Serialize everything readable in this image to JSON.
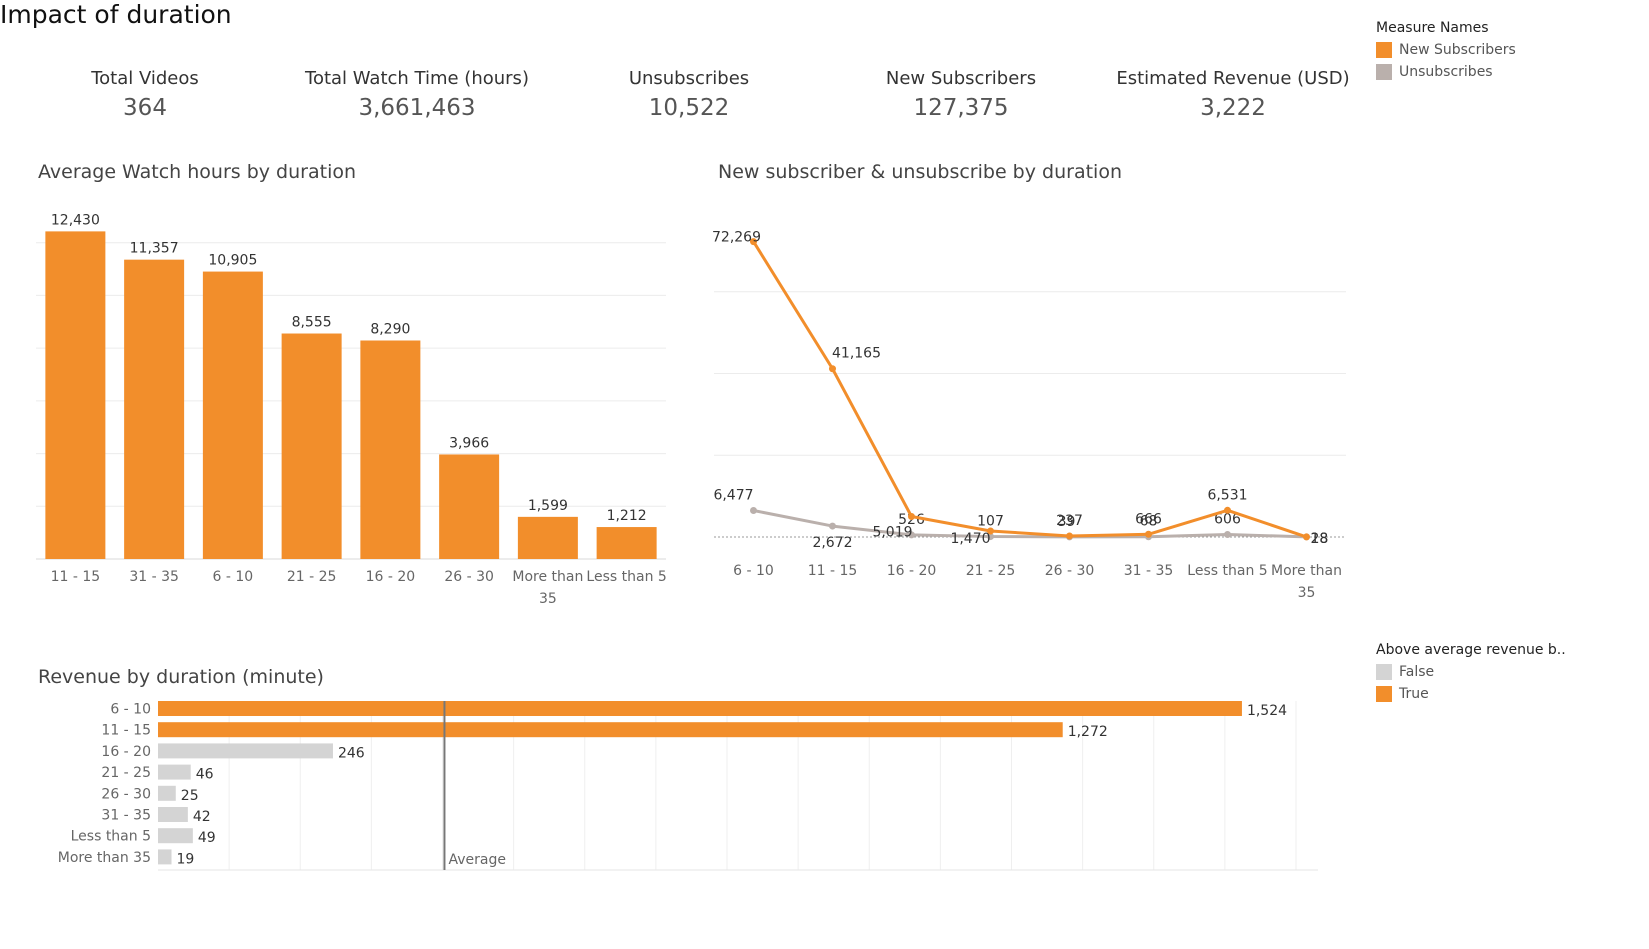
{
  "page_title": "Impact of duration",
  "kpis": [
    {
      "label": "Total Videos",
      "value": "364"
    },
    {
      "label": "Total Watch Time (hours)",
      "value": "3,661,463"
    },
    {
      "label": "Unsubscribes",
      "value": "10,522"
    },
    {
      "label": "New Subscribers",
      "value": "127,375"
    },
    {
      "label": "Estimated Revenue (USD)",
      "value": "3,222"
    }
  ],
  "legend_measure": {
    "title": "Measure Names",
    "items": [
      {
        "label": "New Subscribers",
        "color": "#f28e2b"
      },
      {
        "label": "Unsubscribes",
        "color": "#bab0ac"
      }
    ]
  },
  "legend_revenue": {
    "title": "Above average revenue b..",
    "items": [
      {
        "label": "False",
        "color": "#d4d4d4"
      },
      {
        "label": "True",
        "color": "#f28e2b"
      }
    ]
  },
  "chart_data": [
    {
      "type": "bar",
      "title": "Average Watch hours by duration",
      "categories": [
        "11 - 15",
        "31 - 35",
        "6 - 10",
        "21 - 25",
        "16 - 20",
        "26 - 30",
        "More than 35",
        "Less than 5"
      ],
      "values": [
        12430,
        11357,
        10905,
        8555,
        8290,
        3966,
        1599,
        1212
      ],
      "labels": [
        "12,430",
        "11,357",
        "10,905",
        "8,555",
        "8,290",
        "3,966",
        "1,599",
        "1,212"
      ],
      "ylim": [
        0,
        14000
      ],
      "grid": true,
      "color": "#f28e2b"
    },
    {
      "type": "line",
      "title": "New subscriber & unsubscribe by duration",
      "categories": [
        "6 - 10",
        "11 - 15",
        "16 - 20",
        "21 - 25",
        "26 - 30",
        "31 - 35",
        "Less than 5",
        "More than 35"
      ],
      "series": [
        {
          "name": "New Subscribers",
          "color": "#f28e2b",
          "values": [
            72269,
            41165,
            5019,
            1470,
            237,
            666,
            6531,
            18
          ],
          "labels": [
            "72,269",
            "41,165",
            "5,019",
            "1,470",
            "237",
            "666",
            "6,531",
            "18"
          ]
        },
        {
          "name": "Unsubscribes",
          "color": "#bab0ac",
          "values": [
            6477,
            2672,
            526,
            107,
            39,
            68,
            606,
            28
          ],
          "labels": [
            "6,477",
            "2,672",
            "526",
            "107",
            "39",
            "68",
            "606",
            "28"
          ]
        }
      ],
      "ylim": [
        0,
        80000
      ],
      "grid": true
    },
    {
      "type": "bar",
      "orientation": "horizontal",
      "title": "Revenue by duration (minute)",
      "categories": [
        "6 - 10",
        "11 - 15",
        "16 - 20",
        "21 - 25",
        "26 - 30",
        "31 - 35",
        "Less than 5",
        "More than 35"
      ],
      "values": [
        1524,
        1272,
        246,
        46,
        25,
        42,
        49,
        19
      ],
      "labels": [
        "1,524",
        "1,272",
        "246",
        "46",
        "25",
        "42",
        "49",
        "19"
      ],
      "above_average": [
        true,
        true,
        false,
        false,
        false,
        false,
        false,
        false
      ],
      "reference_line": {
        "label": "Average",
        "value": 402.75
      },
      "xlim": [
        0,
        1600
      ],
      "grid": true
    }
  ]
}
